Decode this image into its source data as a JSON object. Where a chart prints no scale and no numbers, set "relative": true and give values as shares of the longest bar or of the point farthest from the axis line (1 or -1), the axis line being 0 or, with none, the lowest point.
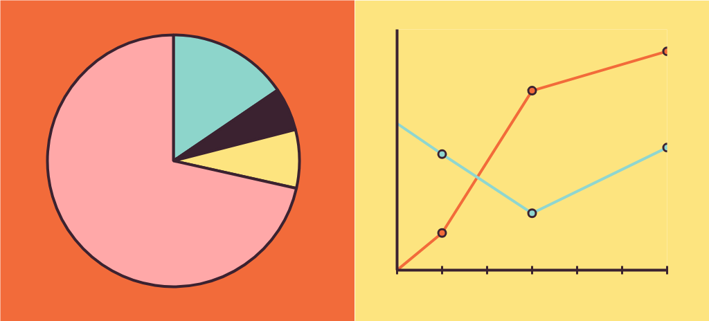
{
  "chart_data": [
    {
      "type": "pie",
      "categories": [
        null,
        null,
        null,
        null
      ],
      "values": [
        15.5,
        5.5,
        7.5,
        71.5
      ],
      "colors": [
        "#8dd5cb",
        "#3b2230",
        "#fde47f",
        "#ffa8a8"
      ]
    },
    {
      "type": "line",
      "relative": true,
      "categories": [
        null,
        null,
        null,
        null,
        null,
        null,
        null
      ],
      "marker": "circle",
      "series": [
        {
          "color": "#f26b3a",
          "values": [
            0,
            0.17,
            null,
            0.82,
            null,
            null,
            1
          ]
        },
        {
          "color": "#8fd6d0",
          "values": [
            0.67,
            0.53,
            null,
            0.26,
            null,
            null,
            0.56
          ]
        }
      ]
    }
  ]
}
